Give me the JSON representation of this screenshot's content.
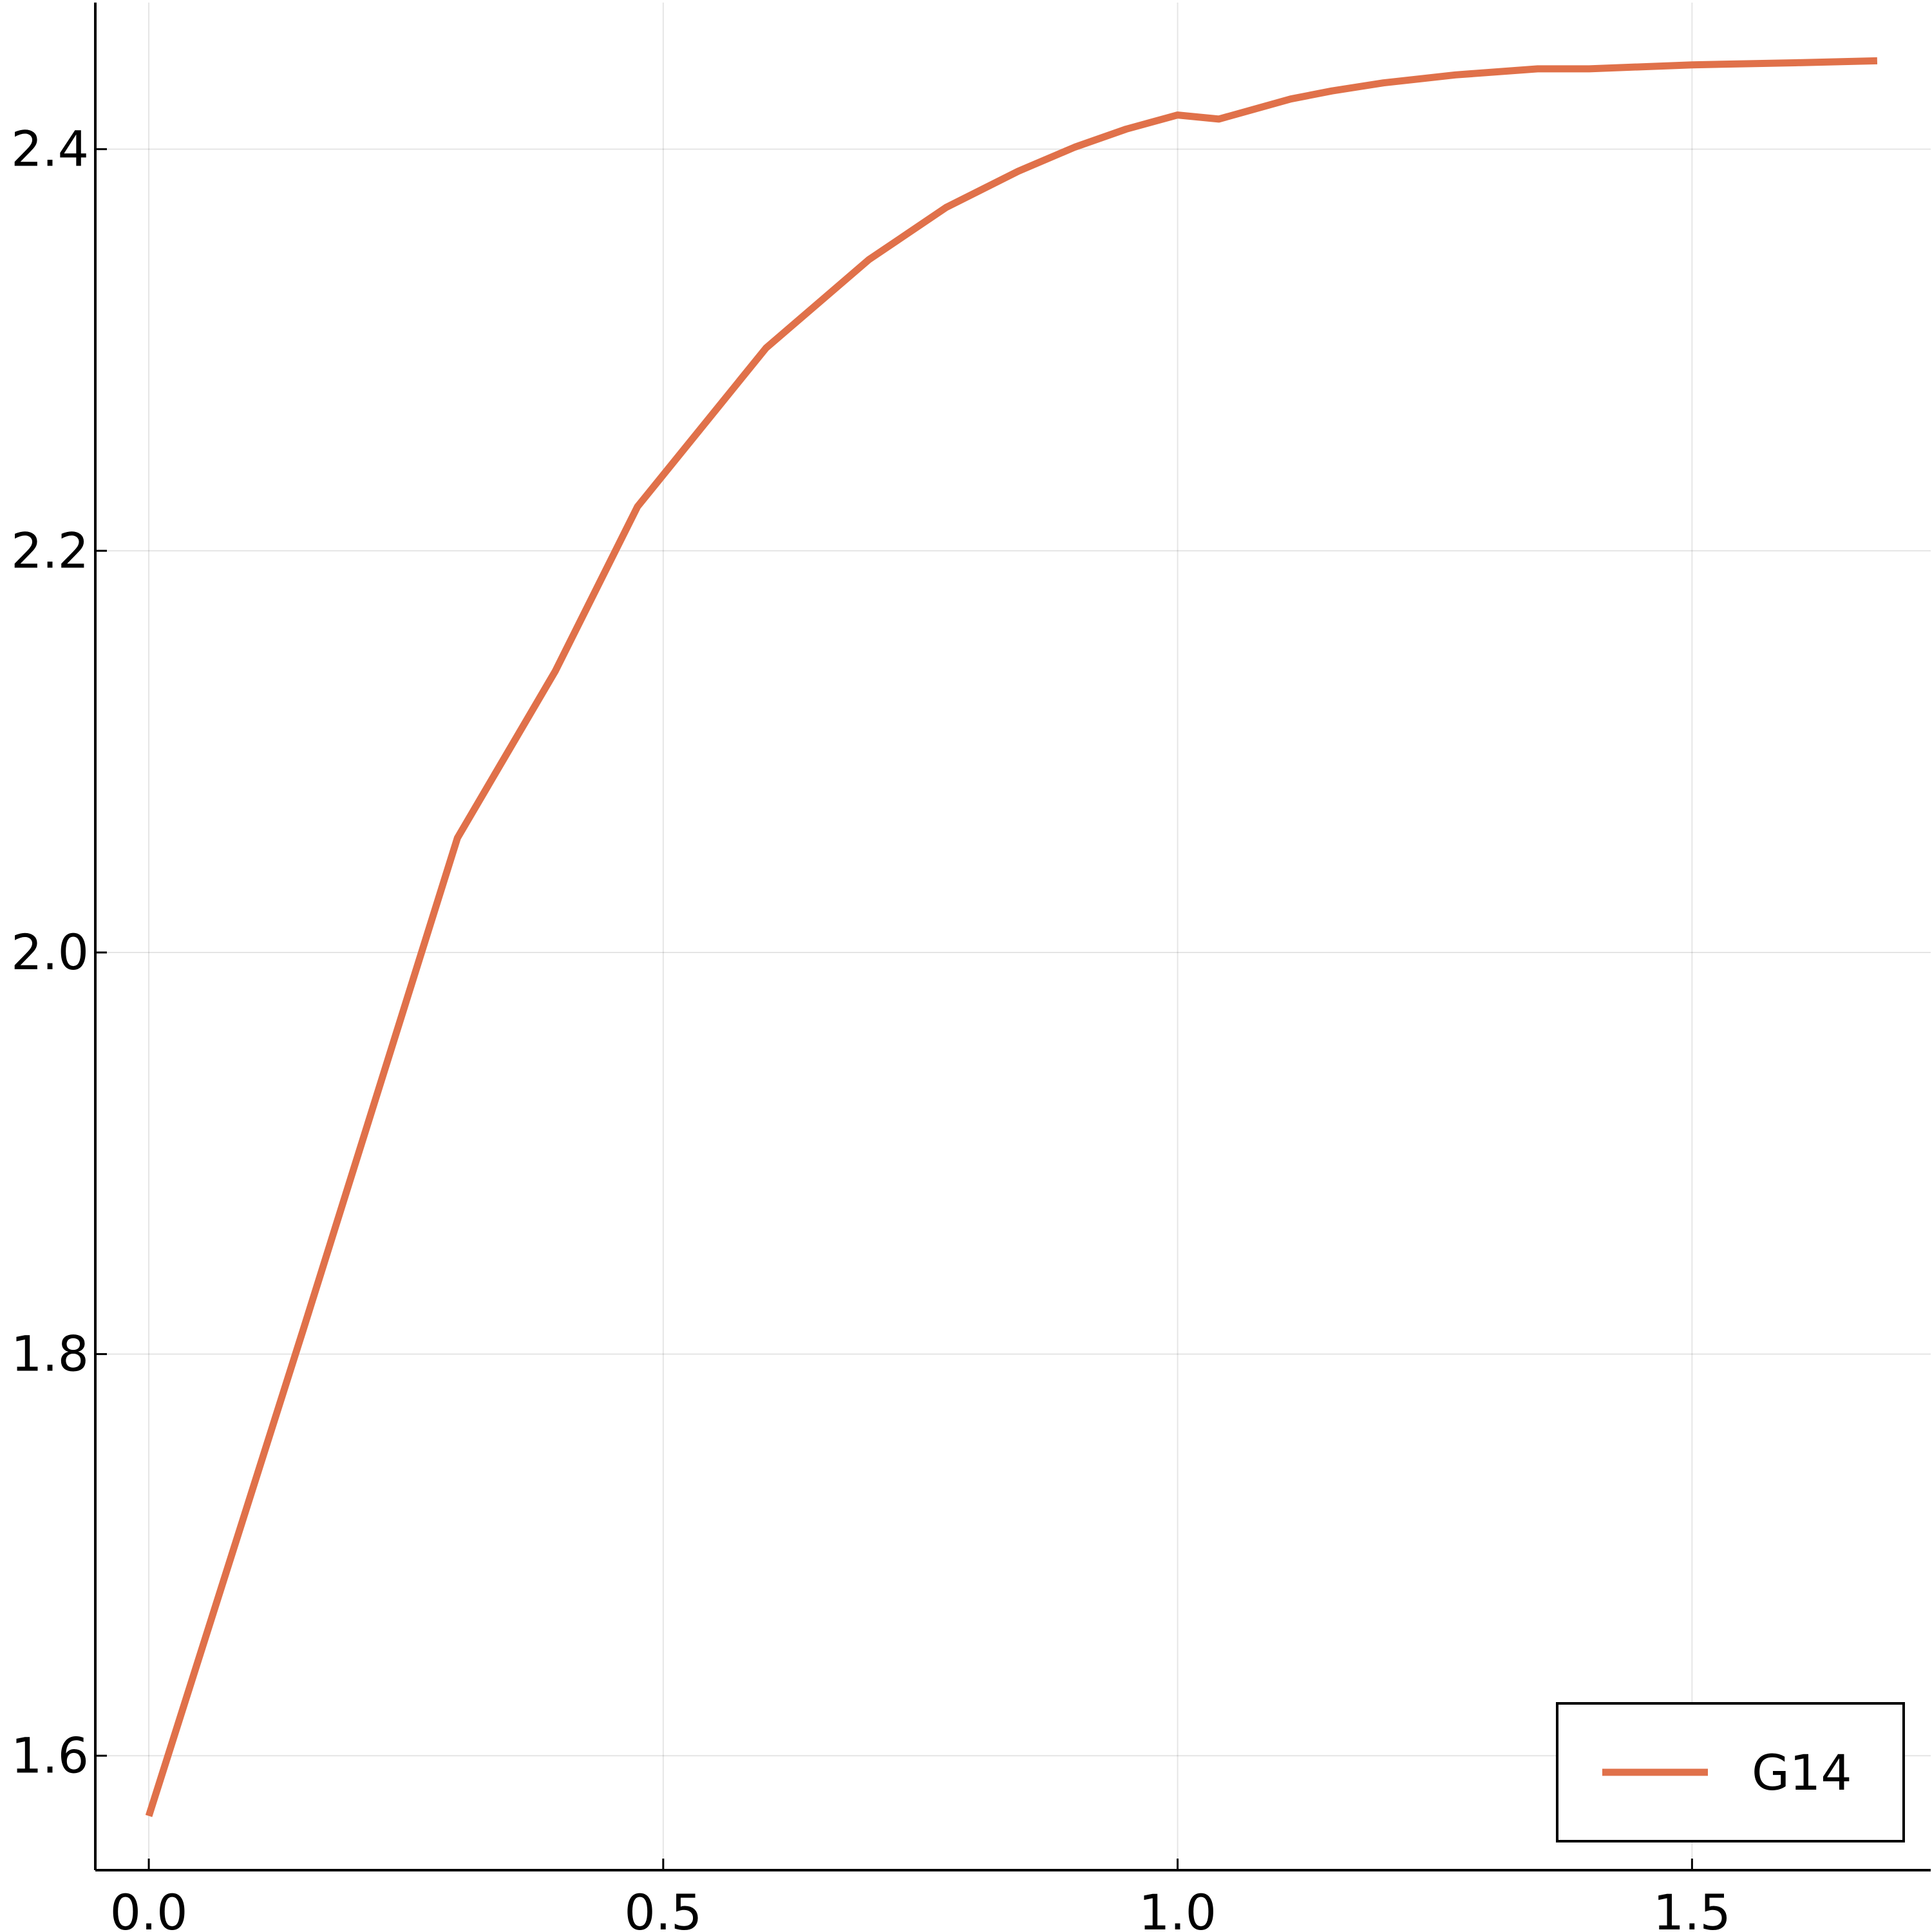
{
  "chart_data": {
    "type": "line",
    "title": "",
    "xlabel": "",
    "ylabel": "",
    "xlim": [
      -0.052,
      1.732
    ],
    "ylim": [
      1.543,
      2.473
    ],
    "x_ticks": [
      0.0,
      0.5,
      1.0,
      1.5
    ],
    "x_tick_labels": [
      "0.0",
      "0.5",
      "1.0",
      "1.5"
    ],
    "y_ticks": [
      1.6,
      1.8,
      2.0,
      2.2,
      2.4
    ],
    "y_tick_labels": [
      "1.6",
      "1.8",
      "2.0",
      "2.2",
      "2.4"
    ],
    "grid": true,
    "legend_position": "bottom-right",
    "series": [
      {
        "name": "G14",
        "color": "#e0714a",
        "points": [
          [
            0.0,
            1.57
          ],
          [
            0.15,
            1.812
          ],
          [
            0.3,
            2.057
          ],
          [
            0.395,
            2.14
          ],
          [
            0.475,
            2.222
          ],
          [
            0.6,
            2.301
          ],
          [
            0.7,
            2.345
          ],
          [
            0.775,
            2.371
          ],
          [
            0.845,
            2.389
          ],
          [
            0.9,
            2.401
          ],
          [
            0.95,
            2.41
          ],
          [
            1.0,
            2.417
          ],
          [
            1.04,
            2.415
          ],
          [
            1.11,
            2.425
          ],
          [
            1.15,
            2.429
          ],
          [
            1.2,
            2.433
          ],
          [
            1.27,
            2.437
          ],
          [
            1.35,
            2.44
          ],
          [
            1.4,
            2.44
          ],
          [
            1.5,
            2.442
          ],
          [
            1.6,
            2.443
          ],
          [
            1.68,
            2.444
          ]
        ]
      }
    ]
  }
}
